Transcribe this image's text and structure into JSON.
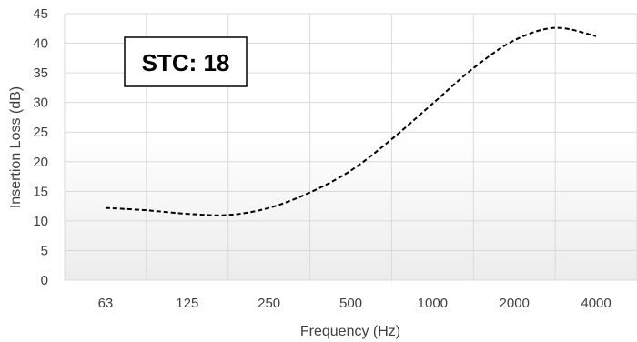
{
  "chart_data": {
    "type": "line",
    "categories": [
      "63",
      "125",
      "250",
      "500",
      "1000",
      "2000",
      "4000"
    ],
    "series": [
      {
        "name": "",
        "style": "dashed",
        "color": "#000000",
        "points": [
          [
            0,
            12.2
          ],
          [
            0.5,
            11.8
          ],
          [
            1,
            11.2
          ],
          [
            1.5,
            11.0
          ],
          [
            2,
            12.2
          ],
          [
            2.5,
            14.8
          ],
          [
            3,
            18.5
          ],
          [
            3.5,
            23.8
          ],
          [
            4,
            29.8
          ],
          [
            4.5,
            35.8
          ],
          [
            5,
            40.5
          ],
          [
            5.5,
            42.6
          ],
          [
            6,
            41.2
          ]
        ]
      }
    ],
    "title": "",
    "xlabel": "Frequency (Hz)",
    "ylabel": "Insertion Loss (dB)",
    "ylim": [
      0,
      45
    ],
    "yticks": [
      0,
      5,
      10,
      15,
      20,
      25,
      30,
      35,
      40,
      45
    ],
    "grid": true,
    "annotation": "STC: 18"
  }
}
